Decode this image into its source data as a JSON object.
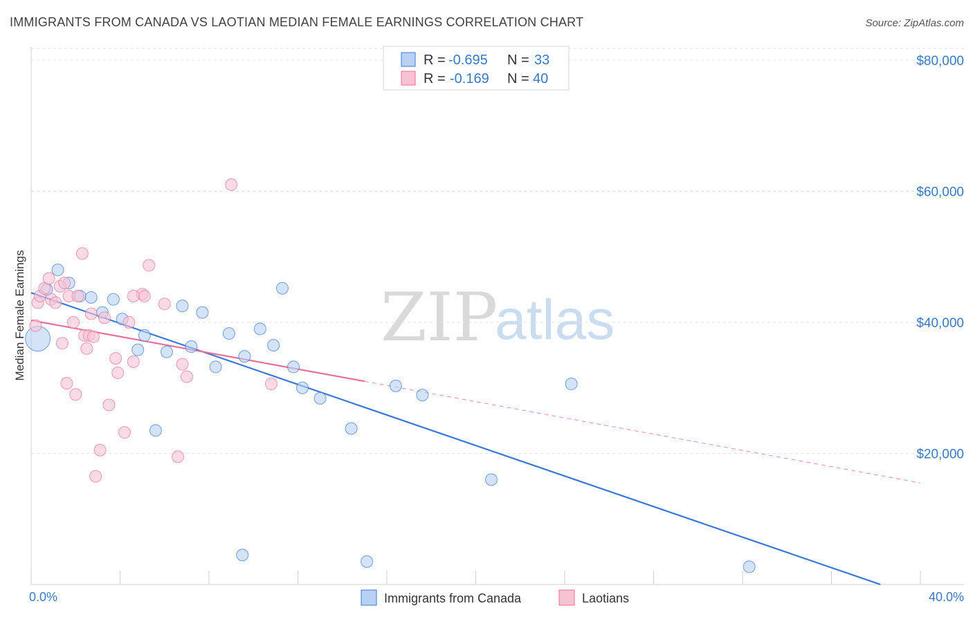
{
  "chart_data": {
    "type": "scatter",
    "title": "IMMIGRANTS FROM CANADA VS LAOTIAN MEDIAN FEMALE EARNINGS CORRELATION CHART",
    "source": "Source: ZipAtlas.com",
    "ylabel": "Median Female Earnings",
    "xlabel": "",
    "xlim": [
      0,
      40
    ],
    "ylim": [
      0,
      82000
    ],
    "x_tick_labels": {
      "left": "0.0%",
      "right": "40.0%"
    },
    "y_ticks": [
      {
        "value": 20000,
        "label": "$20,000"
      },
      {
        "value": 40000,
        "label": "$40,000"
      },
      {
        "value": 60000,
        "label": "$60,000"
      },
      {
        "value": 80000,
        "label": "$80,000"
      }
    ],
    "grid": "horizontal dashed",
    "legend_placement": "top-center",
    "watermark": {
      "zip": "ZIP",
      "atlas": "atlas"
    },
    "stats": [
      {
        "r_label": "R =",
        "r_value": "-0.695",
        "n_label": "N =",
        "n_value": "33"
      },
      {
        "r_label": "R =",
        "r_value": "-0.169",
        "n_label": "N =",
        "n_value": "40"
      }
    ],
    "series": [
      {
        "name": "Immigrants from Canada",
        "color": "#3b78d8",
        "fill": "#b8d1f3",
        "points": [
          [
            0.3,
            37500,
            "big"
          ],
          [
            0.7,
            45000
          ],
          [
            1.2,
            48000
          ],
          [
            1.7,
            46000
          ],
          [
            2.2,
            44000
          ],
          [
            2.7,
            43800
          ],
          [
            3.2,
            41500
          ],
          [
            3.7,
            43500
          ],
          [
            4.1,
            40500
          ],
          [
            4.8,
            35800
          ],
          [
            5.1,
            38000
          ],
          [
            5.6,
            23500
          ],
          [
            6.1,
            35500
          ],
          [
            6.8,
            42500
          ],
          [
            7.2,
            36300
          ],
          [
            7.7,
            41500
          ],
          [
            8.3,
            33200
          ],
          [
            8.9,
            38300
          ],
          [
            9.5,
            4500
          ],
          [
            9.6,
            34800
          ],
          [
            10.3,
            39000
          ],
          [
            10.9,
            36500
          ],
          [
            11.3,
            45200
          ],
          [
            11.8,
            33200
          ],
          [
            12.2,
            30000
          ],
          [
            13.0,
            28400
          ],
          [
            14.4,
            23800
          ],
          [
            15.1,
            3500
          ],
          [
            16.4,
            30300
          ],
          [
            17.6,
            28900
          ],
          [
            20.7,
            16000
          ],
          [
            24.3,
            30600
          ],
          [
            32.3,
            2700
          ]
        ],
        "trend": {
          "x0": 0,
          "y0": 44500,
          "x1": 38.2,
          "y1": 0
        }
      },
      {
        "name": "Laotians",
        "color": "#e8709a",
        "fill": "#f7c3d3",
        "points": [
          [
            0.2,
            39500
          ],
          [
            0.3,
            43000
          ],
          [
            0.4,
            44000
          ],
          [
            0.6,
            45200
          ],
          [
            0.8,
            46700
          ],
          [
            0.9,
            43500
          ],
          [
            1.3,
            45500
          ],
          [
            1.4,
            36800
          ],
          [
            1.5,
            46000
          ],
          [
            1.6,
            30700
          ],
          [
            1.7,
            44000
          ],
          [
            1.9,
            40000
          ],
          [
            2.0,
            29000
          ],
          [
            2.3,
            50500
          ],
          [
            2.4,
            38000
          ],
          [
            2.5,
            36000
          ],
          [
            2.6,
            38000
          ],
          [
            2.7,
            41300
          ],
          [
            2.8,
            37800
          ],
          [
            2.9,
            16500
          ],
          [
            3.1,
            20500
          ],
          [
            3.5,
            27400
          ],
          [
            3.8,
            34500
          ],
          [
            3.9,
            32300
          ],
          [
            4.2,
            23200
          ],
          [
            4.4,
            40000
          ],
          [
            4.6,
            34000
          ],
          [
            5.0,
            44300
          ],
          [
            5.3,
            48700
          ],
          [
            5.1,
            44000
          ],
          [
            6.0,
            42800
          ],
          [
            6.6,
            19500
          ],
          [
            6.8,
            33600
          ],
          [
            7.0,
            31700
          ],
          [
            9.0,
            61000
          ],
          [
            10.8,
            30600
          ],
          [
            3.3,
            40700
          ],
          [
            2.1,
            44000
          ],
          [
            1.1,
            43000
          ],
          [
            4.6,
            44000
          ]
        ],
        "trend": {
          "x0": 0,
          "y0": 40300,
          "x1": 15.0,
          "y1": 31000
        },
        "trend_extension": {
          "x0": 15.0,
          "y0": 31000,
          "x1": 40,
          "y1": 15500
        }
      }
    ]
  }
}
